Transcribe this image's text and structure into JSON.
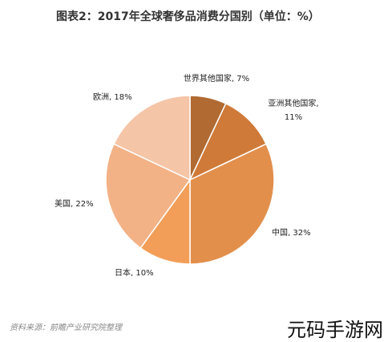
{
  "title": "图表2：2017年全球奢侈品消费分国别（单位：%）",
  "source": "资料来源：前瞻产业研究院整理",
  "watermark": "元码手游网",
  "chart_data": {
    "type": "pie",
    "start_angle_deg": 0,
    "direction": "clockwise",
    "slices": [
      {
        "label": "世界其他国家",
        "value": 7,
        "color": "#b06a32",
        "display": "世界其他国家, 7%"
      },
      {
        "label": "亚洲其他国家",
        "value": 11,
        "color": "#cf7a38",
        "display": "亚洲其他国家, 11%"
      },
      {
        "label": "中国",
        "value": 32,
        "color": "#e28f4c",
        "display": "中国, 32%"
      },
      {
        "label": "日本",
        "value": 10,
        "color": "#f29e58",
        "display": "日本, 10%"
      },
      {
        "label": "美国",
        "value": 22,
        "color": "#f3b286",
        "display": "美国, 22%"
      },
      {
        "label": "欧洲",
        "value": 18,
        "color": "#f5c5a7",
        "display": "欧洲, 18%"
      }
    ]
  }
}
